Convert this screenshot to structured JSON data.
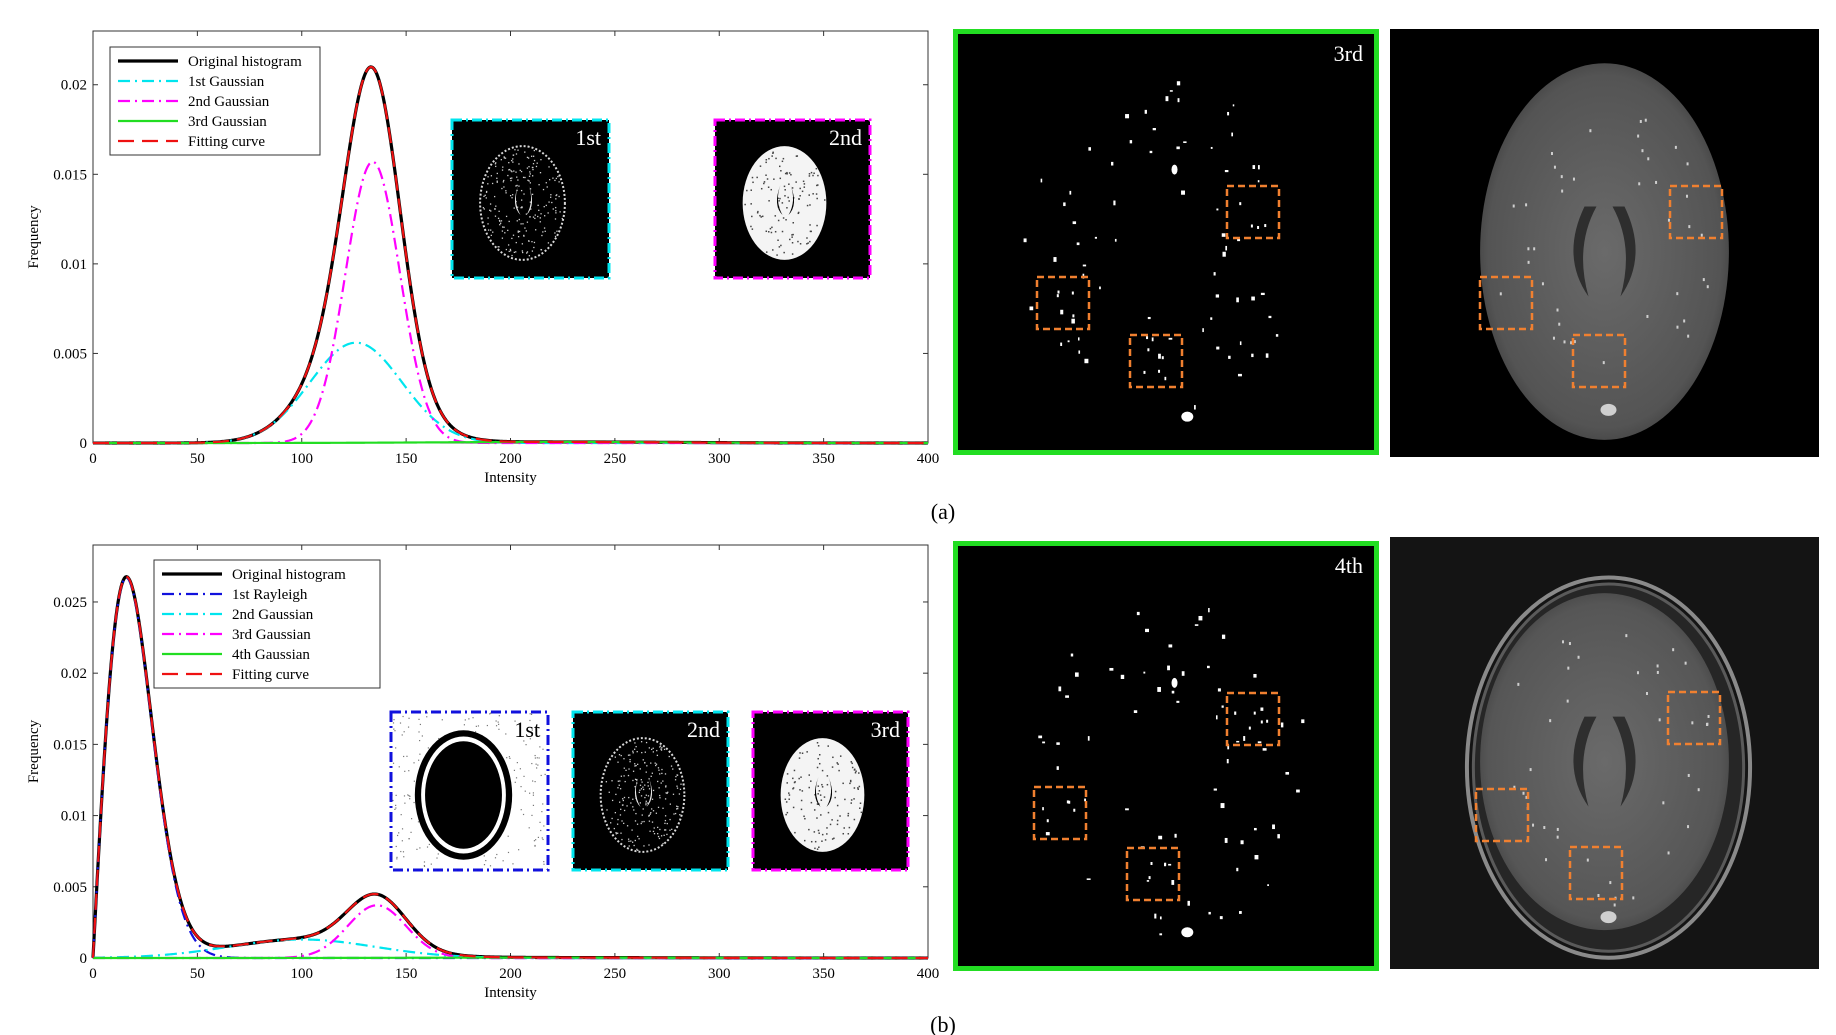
{
  "figure": {
    "panel_labels": [
      "(a)",
      "(b)"
    ]
  },
  "chart_data": [
    {
      "type": "line",
      "panel": "(a)",
      "xlabel": "Intensity",
      "ylabel": "Frequency",
      "xlim": [
        0,
        400
      ],
      "ylim": [
        0,
        0.023
      ],
      "xticks": [
        0,
        50,
        100,
        150,
        200,
        250,
        300,
        350,
        400
      ],
      "yticks": [
        0,
        0.005,
        0.01,
        0.015,
        0.02
      ],
      "ytick_labels": [
        "0",
        "0.005",
        "0.01",
        "0.015",
        "0.02"
      ],
      "legend_position": "top-left",
      "grid": false,
      "series": [
        {
          "name": "Original histogram",
          "color": "#000000",
          "style": "solid",
          "components": [
            {
              "kind": "gaussian",
              "amplitude": 0.0056,
              "mean": 126,
              "sigma": 22
            },
            {
              "kind": "gaussian",
              "amplitude": 0.0157,
              "mean": 134,
              "sigma": 13
            },
            {
              "kind": "gaussian",
              "amplitude": 6e-05,
              "mean": 220,
              "sigma": 55
            }
          ]
        },
        {
          "name": "1st Gaussian",
          "color": "#00e5ee",
          "style": "dashdot",
          "components": [
            {
              "kind": "gaussian",
              "amplitude": 0.0056,
              "mean": 126,
              "sigma": 22
            }
          ]
        },
        {
          "name": "2nd Gaussian",
          "color": "#ff00ff",
          "style": "dashdot",
          "components": [
            {
              "kind": "gaussian",
              "amplitude": 0.0157,
              "mean": 134,
              "sigma": 13
            }
          ]
        },
        {
          "name": "3rd Gaussian",
          "color": "#22dd22",
          "style": "solid",
          "components": [
            {
              "kind": "gaussian",
              "amplitude": 6e-05,
              "mean": 220,
              "sigma": 55
            }
          ]
        },
        {
          "name": "Fitting curve",
          "color": "#ee1111",
          "style": "dashed",
          "components": [
            {
              "kind": "gaussian",
              "amplitude": 0.0056,
              "mean": 126,
              "sigma": 22
            },
            {
              "kind": "gaussian",
              "amplitude": 0.0157,
              "mean": 134,
              "sigma": 13
            },
            {
              "kind": "gaussian",
              "amplitude": 6e-05,
              "mean": 220,
              "sigma": 55
            }
          ]
        }
      ],
      "insets": [
        {
          "label": "1st",
          "border_color": "#00e5ee",
          "kind": "sparse"
        },
        {
          "label": "2nd",
          "border_color": "#ff00ff",
          "kind": "solid"
        }
      ]
    },
    {
      "type": "line",
      "panel": "(b)",
      "xlabel": "Intensity",
      "ylabel": "Frequency",
      "xlim": [
        0,
        400
      ],
      "ylim": [
        0,
        0.029
      ],
      "xticks": [
        0,
        50,
        100,
        150,
        200,
        250,
        300,
        350,
        400
      ],
      "yticks": [
        0,
        0.005,
        0.01,
        0.015,
        0.02,
        0.025
      ],
      "ytick_labels": [
        "0",
        "0.005",
        "0.01",
        "0.015",
        "0.02",
        "0.025"
      ],
      "legend_position": "top-center",
      "grid": false,
      "series": [
        {
          "name": "Original histogram",
          "color": "#000000",
          "style": "solid",
          "components": [
            {
              "kind": "rayleigh",
              "peak": 0.0267,
              "mode": 16
            },
            {
              "kind": "gaussian",
              "amplitude": 0.0013,
              "mean": 100,
              "sigma": 35
            },
            {
              "kind": "gaussian",
              "amplitude": 0.0037,
              "mean": 136,
              "sigma": 14
            },
            {
              "kind": "gaussian",
              "amplitude": 3e-05,
              "mean": 220,
              "sigma": 60
            }
          ]
        },
        {
          "name": "1st Rayleigh",
          "color": "#1111dd",
          "style": "dashdot",
          "components": [
            {
              "kind": "rayleigh",
              "peak": 0.0267,
              "mode": 16
            }
          ]
        },
        {
          "name": "2nd Gaussian",
          "color": "#00e5ee",
          "style": "dashdot",
          "components": [
            {
              "kind": "gaussian",
              "amplitude": 0.0013,
              "mean": 100,
              "sigma": 35
            }
          ]
        },
        {
          "name": "3rd Gaussian",
          "color": "#ff00ff",
          "style": "dashdot",
          "components": [
            {
              "kind": "gaussian",
              "amplitude": 0.0037,
              "mean": 136,
              "sigma": 14
            }
          ]
        },
        {
          "name": "4th Gaussian",
          "color": "#22dd22",
          "style": "solid",
          "components": [
            {
              "kind": "gaussian",
              "amplitude": 3e-05,
              "mean": 220,
              "sigma": 60
            }
          ]
        },
        {
          "name": "Fitting curve",
          "color": "#ee1111",
          "style": "dashed",
          "components": [
            {
              "kind": "rayleigh",
              "peak": 0.0267,
              "mode": 16
            },
            {
              "kind": "gaussian",
              "amplitude": 0.0013,
              "mean": 100,
              "sigma": 35
            },
            {
              "kind": "gaussian",
              "amplitude": 0.0037,
              "mean": 136,
              "sigma": 14
            },
            {
              "kind": "gaussian",
              "amplitude": 3e-05,
              "mean": 220,
              "sigma": 60
            }
          ]
        }
      ],
      "insets": [
        {
          "label": "1st",
          "border_color": "#1111dd",
          "kind": "ring"
        },
        {
          "label": "2nd",
          "border_color": "#00e5ee",
          "kind": "sparse"
        },
        {
          "label": "3rd",
          "border_color": "#ff00ff",
          "kind": "solid"
        }
      ]
    }
  ],
  "images": [
    {
      "label": "3rd",
      "kind": "vessel-map",
      "border_color": "#22dd22"
    },
    {
      "label": "",
      "kind": "mri-slice",
      "highlight_color": "#f08030"
    },
    {
      "label": "4th",
      "kind": "vessel-map",
      "border_color": "#22dd22"
    },
    {
      "label": "",
      "kind": "mri-slice-skull",
      "highlight_color": "#f08030"
    }
  ]
}
